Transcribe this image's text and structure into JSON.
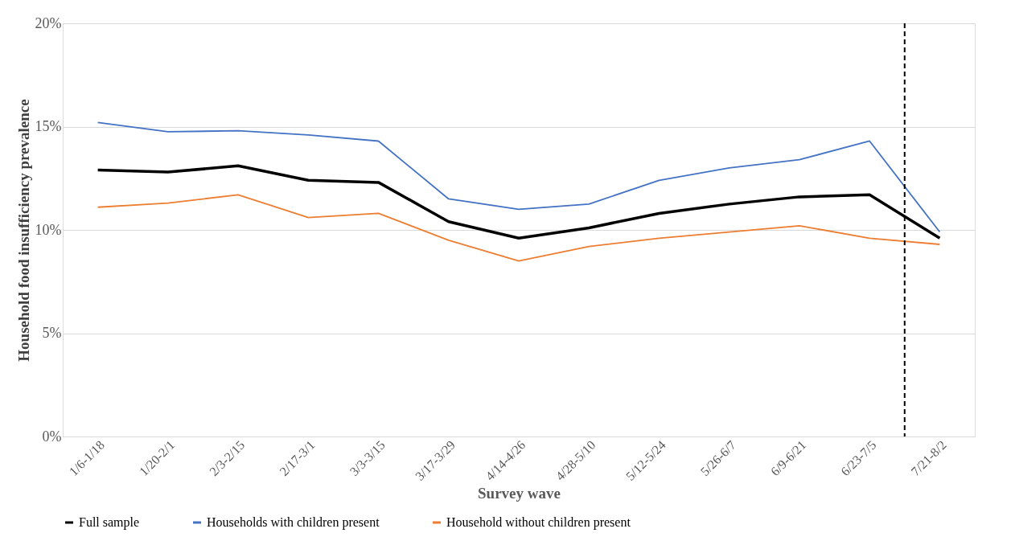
{
  "chart_data": {
    "type": "line",
    "xlabel": "Survey wave",
    "ylabel": "Household food insufficiency prevalence",
    "categories": [
      "1/6-1/18",
      "1/20-2/1",
      "2/3-2/15",
      "2/17-3/1",
      "3/3-3/15",
      "3/17-3/29",
      "4/14-4/26",
      "4/28-5/10",
      "5/12-5/24",
      "5/26-6/7",
      "6/9-6/21",
      "6/23-7/5",
      "7/21-8/2"
    ],
    "series": [
      {
        "name": "Full sample",
        "color": "#000000",
        "values": [
          12.9,
          12.8,
          13.1,
          12.4,
          12.3,
          10.4,
          9.6,
          10.1,
          10.8,
          11.25,
          11.6,
          11.7,
          9.6
        ]
      },
      {
        "name": "Households with children present",
        "color": "#4472c4",
        "values": [
          15.2,
          14.75,
          14.8,
          14.6,
          14.3,
          11.5,
          11.0,
          11.25,
          12.4,
          13.0,
          13.4,
          14.3,
          9.9
        ]
      },
      {
        "name": "Household without children present",
        "color": "#ed7d31",
        "values": [
          11.1,
          11.3,
          11.7,
          10.6,
          10.8,
          9.5,
          8.5,
          9.2,
          9.6,
          9.9,
          10.2,
          9.6,
          9.3
        ]
      }
    ],
    "ylim": [
      0,
      20
    ],
    "yticks": [
      {
        "value": 0,
        "label": "0%"
      },
      {
        "value": 5,
        "label": "5%"
      },
      {
        "value": 10,
        "label": "10%"
      },
      {
        "value": 15,
        "label": "15%"
      },
      {
        "value": 20,
        "label": "20%"
      }
    ],
    "ref_lines": [
      {
        "axis": "x",
        "value": "7/21-8/2",
        "color": "#000000",
        "line_style": "dashed"
      }
    ],
    "grid": "y",
    "legend": "bottom",
    "marker": "none",
    "line_style": "solid"
  }
}
